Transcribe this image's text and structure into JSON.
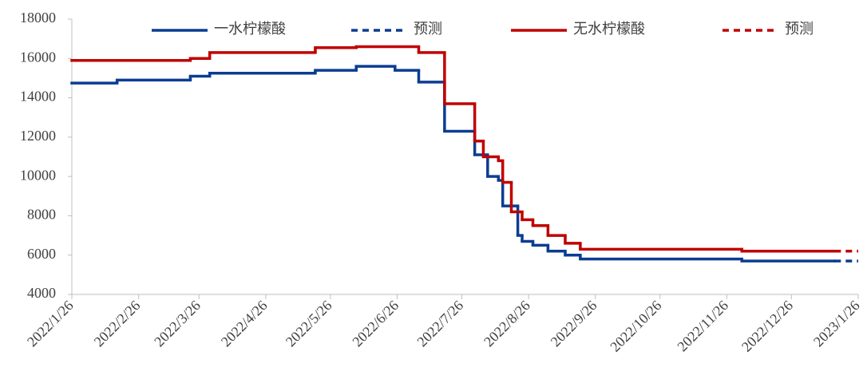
{
  "chart_data": {
    "type": "line",
    "step": "post",
    "xlim": [
      "2022/1/26",
      "2023/1/26"
    ],
    "xticks": [
      "2022/1/26",
      "2022/2/26",
      "2022/3/26",
      "2022/4/26",
      "2022/5/26",
      "2022/6/26",
      "2022/7/26",
      "2022/8/26",
      "2022/9/26",
      "2022/10/26",
      "2022/11/26",
      "2022/12/26",
      "2023/1/26"
    ],
    "ylim": [
      4000,
      18000
    ],
    "yticks": [
      4000,
      6000,
      8000,
      10000,
      12000,
      14000,
      16000,
      18000
    ],
    "series": [
      {
        "name": "一水柠檬酸",
        "color": "#0b3d91",
        "style": "solid",
        "x": [
          "2022/1/26",
          "2022/2/16",
          "2022/3/22",
          "2022/3/31",
          "2022/5/19",
          "2022/6/7",
          "2022/6/25",
          "2022/7/6",
          "2022/7/18",
          "2022/8/1",
          "2022/8/7",
          "2022/8/12",
          "2022/8/14",
          "2022/8/21",
          "2022/8/23",
          "2022/8/28",
          "2022/9/4",
          "2022/9/12",
          "2022/9/19",
          "2022/12/3"
        ],
        "values": [
          14750,
          14900,
          15100,
          15250,
          15400,
          15600,
          15400,
          14800,
          12300,
          11100,
          10000,
          9800,
          8500,
          7000,
          6700,
          6500,
          6200,
          6000,
          5800,
          5700
        ]
      },
      {
        "name": "预测",
        "color": "#0b3d91",
        "style": "dashed",
        "x": [
          "2023/1/15",
          "2023/1/26"
        ],
        "values": [
          5700,
          5700
        ]
      },
      {
        "name": "无水柠檬酸",
        "color": "#c00000",
        "style": "solid",
        "x": [
          "2022/1/26",
          "2022/3/22",
          "2022/3/31",
          "2022/5/19",
          "2022/6/7",
          "2022/7/6",
          "2022/7/18",
          "2022/8/1",
          "2022/8/5",
          "2022/8/12",
          "2022/8/14",
          "2022/8/18",
          "2022/8/23",
          "2022/8/28",
          "2022/9/4",
          "2022/9/12",
          "2022/9/19",
          "2022/12/3"
        ],
        "values": [
          15900,
          16000,
          16300,
          16550,
          16600,
          16300,
          13700,
          11800,
          11000,
          10800,
          9700,
          8200,
          7800,
          7500,
          7000,
          6600,
          6300,
          6200
        ]
      },
      {
        "name": "预测",
        "color": "#c00000",
        "style": "dashed",
        "x": [
          "2023/1/15",
          "2023/1/26"
        ],
        "values": [
          6200,
          6200
        ]
      }
    ]
  }
}
